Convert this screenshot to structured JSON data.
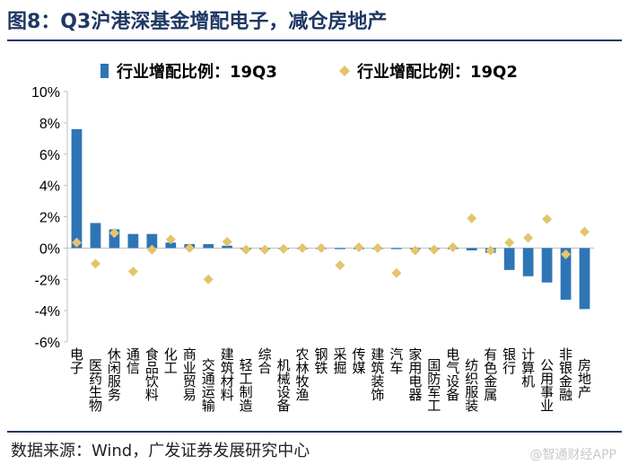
{
  "title": "图8：Q3沪港深基金增配电子，减仓房地产",
  "source": "数据来源：Wind，广发证券发展研究中心",
  "watermark": "@智通财经APP",
  "colors": {
    "bar": "#2e75b6",
    "diamond": "#e4c46c",
    "title": "#1f3864",
    "axis": "#bfbfbf"
  },
  "chart_data": {
    "type": "bar",
    "ylim": [
      -6,
      10
    ],
    "yticks": [
      "10%",
      "8%",
      "6%",
      "4%",
      "2%",
      "0%",
      "-2%",
      "-4%",
      "-6%"
    ],
    "yticks_values": [
      10,
      8,
      6,
      4,
      2,
      0,
      -2,
      -4,
      -6
    ],
    "legend_position": "top",
    "categories": [
      "电子",
      "医药生物",
      "休闲服务",
      "通信",
      "食品饮料",
      "化工",
      "商业贸易",
      "交通运输",
      "建筑材料",
      "轻工制造",
      "综合",
      "机械设备",
      "农林牧渔",
      "钢铁",
      "采掘",
      "传媒",
      "建筑装饰",
      "汽车",
      "家用电器",
      "国防军工",
      "电气设备",
      "纺织服装",
      "有色金属",
      "银行",
      "计算机",
      "公用事业",
      "非银金融",
      "房地产"
    ],
    "series": [
      {
        "name": "行业增配比例：19Q3",
        "type": "bar",
        "values": [
          7.6,
          1.6,
          1.2,
          0.9,
          0.9,
          0.35,
          0.25,
          0.25,
          0.15,
          -0.05,
          -0.05,
          -0.05,
          -0.05,
          -0.05,
          -0.05,
          -0.05,
          -0.05,
          -0.05,
          -0.05,
          -0.05,
          -0.05,
          -0.15,
          -0.3,
          -1.4,
          -1.8,
          -2.2,
          -3.3,
          -3.9
        ]
      },
      {
        "name": "行业增配比例：19Q2",
        "type": "diamond",
        "values": [
          0.35,
          -1.0,
          0.95,
          -1.5,
          -0.1,
          0.55,
          0.0,
          -2.0,
          0.4,
          -0.1,
          -0.1,
          -0.05,
          0.0,
          0.0,
          -1.1,
          0.05,
          0.0,
          -1.6,
          -0.15,
          -0.1,
          0.05,
          1.9,
          -0.15,
          0.35,
          0.65,
          1.85,
          -0.4,
          1.05
        ]
      }
    ]
  }
}
